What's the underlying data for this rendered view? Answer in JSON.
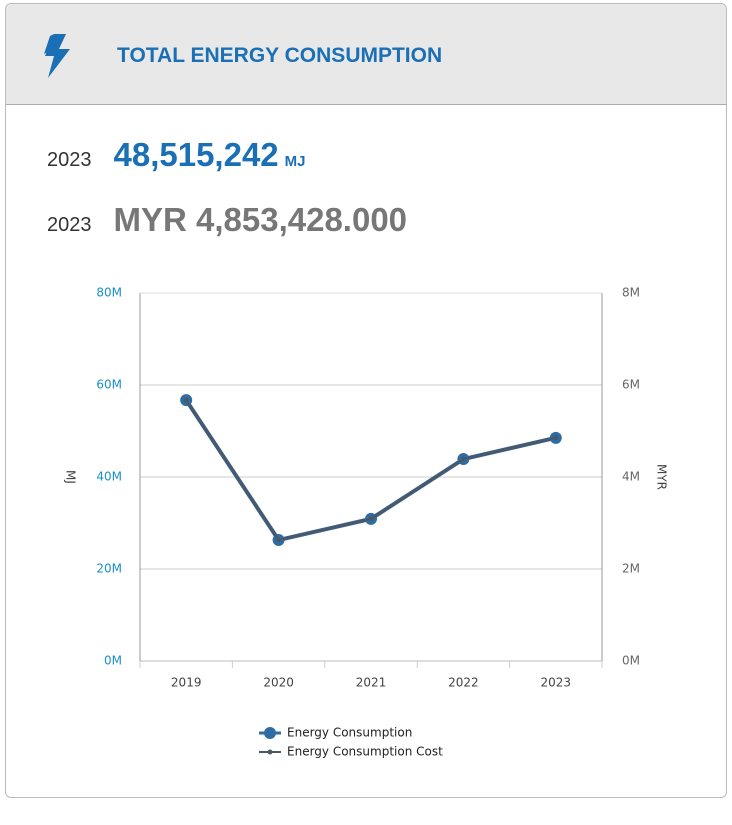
{
  "header": {
    "title": "TOTAL ENERGY CONSUMPTION"
  },
  "stats": [
    {
      "year": "2023",
      "value": "48,515,242",
      "unit": "MJ"
    },
    {
      "year": "2023",
      "value": "MYR 4,853,428.000"
    }
  ],
  "chart_data": {
    "type": "line",
    "categories": [
      "2019",
      "2020",
      "2021",
      "2022",
      "2023"
    ],
    "series": [
      {
        "name": "Energy Consumption",
        "color": "#2e6da4",
        "values": [
          56700000,
          26300000,
          30900000,
          43900000,
          48515242
        ]
      },
      {
        "name": "Energy Consumption Cost",
        "color": "#4a5868",
        "axis": "y2",
        "values": [
          5670000,
          2630000,
          3090000,
          4390000,
          4853428
        ]
      }
    ],
    "ylabel": "MJ",
    "y2label": "MYR",
    "ylim": [
      0,
      80000000
    ],
    "yticks": [
      {
        "value": 0,
        "label": "0M"
      },
      {
        "value": 20000000,
        "label": "20M"
      },
      {
        "value": 40000000,
        "label": "40M"
      },
      {
        "value": 60000000,
        "label": "60M"
      },
      {
        "value": 80000000,
        "label": "80M"
      }
    ],
    "y2lim": [
      0,
      8000000
    ],
    "y2ticks": [
      {
        "value": 0,
        "label": "0M"
      },
      {
        "value": 2000000,
        "label": "2M"
      },
      {
        "value": 4000000,
        "label": "4M"
      },
      {
        "value": 6000000,
        "label": "6M"
      },
      {
        "value": 8000000,
        "label": "8M"
      }
    ],
    "grid": true,
    "legend": "bottom"
  }
}
